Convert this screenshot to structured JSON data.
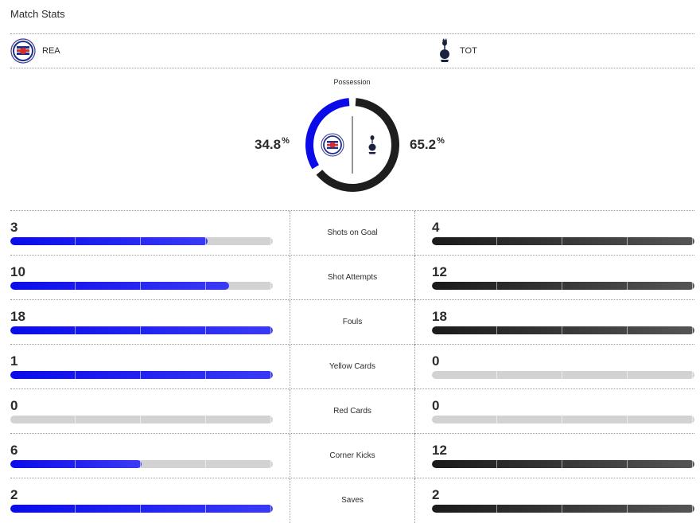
{
  "header": {
    "title": "Match Stats"
  },
  "teams": {
    "home": {
      "abbr": "REA",
      "logo": "reading-fc-crest-icon",
      "color": "#0b0bea"
    },
    "away": {
      "abbr": "TOT",
      "logo": "tottenham-cockerel-icon",
      "color": "#1e1e1e"
    }
  },
  "possession": {
    "label": "Possession",
    "home_value": "34.8",
    "away_value": "65.2",
    "unit": "%"
  },
  "stats": [
    {
      "label": "Shots on Goal",
      "home": "3",
      "away": "4",
      "home_fill": 0.75,
      "away_fill": 1.0
    },
    {
      "label": "Shot Attempts",
      "home": "10",
      "away": "12",
      "home_fill": 0.833,
      "away_fill": 1.0
    },
    {
      "label": "Fouls",
      "home": "18",
      "away": "18",
      "home_fill": 1.0,
      "away_fill": 1.0
    },
    {
      "label": "Yellow Cards",
      "home": "1",
      "away": "0",
      "home_fill": 1.0,
      "away_fill": 0
    },
    {
      "label": "Red Cards",
      "home": "0",
      "away": "0",
      "home_fill": 0,
      "away_fill": 0
    },
    {
      "label": "Corner Kicks",
      "home": "6",
      "away": "12",
      "home_fill": 0.5,
      "away_fill": 1.0
    },
    {
      "label": "Saves",
      "home": "2",
      "away": "2",
      "home_fill": 1.0,
      "away_fill": 1.0
    }
  ]
}
